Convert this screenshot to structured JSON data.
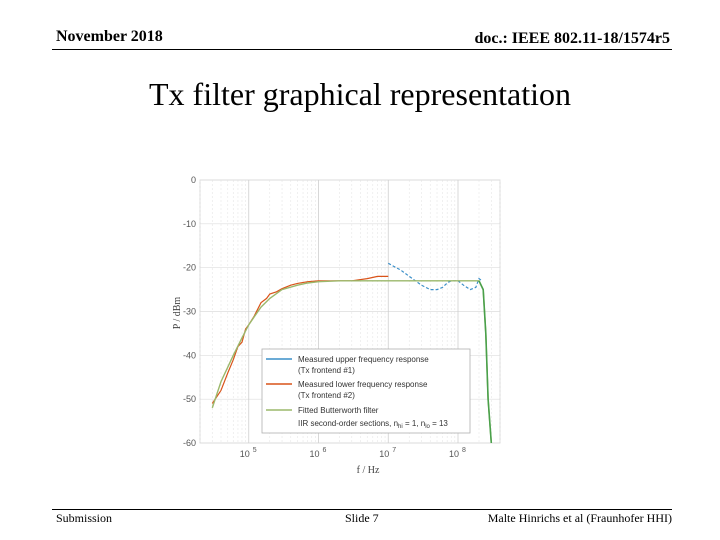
{
  "header": {
    "date": "November 2018",
    "doc": "doc.: IEEE 802.11-18/1574r5"
  },
  "slide_title": "Tx filter graphical representation",
  "footer": {
    "left": "Submission",
    "center": "Slide 7",
    "right": "Malte Hinrichs et al (Fraunhofer HHI)"
  },
  "colors": {
    "upper": "#3a8fc9",
    "lower": "#d95319",
    "fitted": "#9bb86b",
    "butter_tail": "#4aa04a"
  },
  "chart_data": {
    "type": "line",
    "xscale": "log",
    "xlim": [
      20000,
      400000000
    ],
    "ylim": [
      -60,
      0
    ],
    "xlabel": "f / Hz",
    "ylabel": "P / dBm",
    "yticks": [
      0,
      -10,
      -20,
      -30,
      -40,
      -50,
      -60
    ],
    "ytick_labels": [
      "0",
      "-10",
      "-20",
      "-30",
      "-40",
      "-50",
      "-60"
    ],
    "xticks": [
      100000,
      1000000,
      10000000,
      100000000
    ],
    "xtick_bases": [
      "10",
      "10",
      "10",
      "10"
    ],
    "xtick_exps": [
      "5",
      "6",
      "7",
      "8"
    ],
    "grid": true,
    "legend_position": "lower-right",
    "legend": [
      "Measured upper frequency response",
      "(Tx frontend #1)",
      "Measured lower frequency response",
      "(Tx frontend #2)",
      "Fitted Butterworth filter",
      "IIR second-order sections, n"
    ],
    "legend_sub": {
      "hi_sub": "hi",
      "mid": " = 1, n",
      "lo_sub": "lo",
      "end": " = 13"
    },
    "series": [
      {
        "name": "Measured upper frequency response (Tx frontend #1)",
        "x": [
          10000000,
          12000000,
          15000000,
          20000000,
          30000000,
          40000000,
          50000000,
          60000000,
          70000000,
          80000000,
          100000000,
          120000000,
          150000000,
          180000000,
          200000000,
          220000000
        ],
        "y": [
          -19,
          -19.7,
          -20.5,
          -22,
          -24,
          -25,
          -25,
          -24.5,
          -23.5,
          -23,
          -23,
          -24,
          -25,
          -24.5,
          -22.5,
          -23
        ]
      },
      {
        "name": "Measured lower frequency response (Tx frontend #2)",
        "x": [
          30000,
          40000,
          50000,
          60000,
          70000,
          80000,
          90000,
          100000,
          120000,
          150000,
          180000,
          200000,
          250000,
          300000,
          400000,
          500000,
          700000,
          1000000,
          2000000,
          3000000,
          5000000,
          7000000,
          10000000
        ],
        "y": [
          -51,
          -48,
          -44,
          -41,
          -38,
          -37,
          -34,
          -33,
          -31,
          -28,
          -27,
          -26,
          -25.5,
          -24.8,
          -24,
          -23.6,
          -23.2,
          -23,
          -23,
          -23,
          -22.5,
          -22,
          -22
        ]
      },
      {
        "name": "Fitted Butterworth filter",
        "x": [
          30000,
          40000,
          60000,
          80000,
          100000,
          150000,
          200000,
          300000,
          500000,
          700000,
          1000000,
          2000000,
          10000000,
          50000000,
          100000000,
          200000000,
          230000000,
          250000000,
          270000000,
          300000000
        ],
        "y": [
          -52,
          -46,
          -40,
          -36,
          -33,
          -29,
          -27,
          -25,
          -24,
          -23.5,
          -23.2,
          -23,
          -23,
          -23,
          -23,
          -23,
          -25,
          -35,
          -50,
          -60
        ]
      }
    ]
  }
}
